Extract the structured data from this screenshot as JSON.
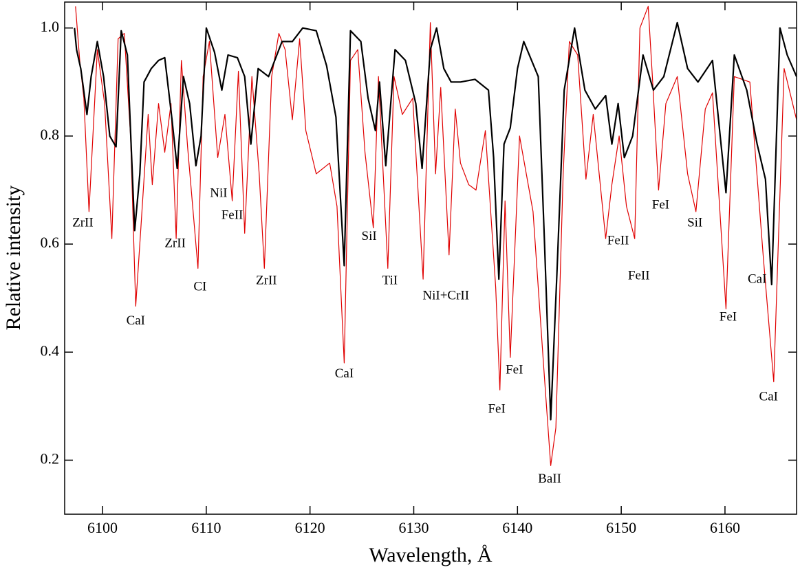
{
  "chart_data": {
    "type": "line",
    "xlabel": "Wavelength, Å",
    "ylabel": "Relative intensity",
    "xlim": [
      6096.35,
      6166.9
    ],
    "ylim": [
      0.1,
      1.048
    ],
    "xticks": [
      6100,
      6110,
      6120,
      6130,
      6140,
      6150,
      6160
    ],
    "yticks": [
      0.2,
      0.4,
      0.6,
      0.8,
      {
        "value": 1,
        "label": "1.0"
      }
    ],
    "grid": false,
    "series": [
      {
        "color": "#e00000",
        "x": [
          6097.4,
          6097.8,
          6098.2,
          6098.7,
          6099.5,
          6100.2,
          6100.9,
          6101.5,
          6102.1,
          6102.7,
          6103.2,
          6103.7,
          6104.4,
          6104.8,
          6105.4,
          6106.0,
          6106.6,
          6107.1,
          6107.6,
          6108.2,
          6109.2,
          6109.7,
          6110.3,
          6111.1,
          6111.8,
          6112.5,
          6113.1,
          6113.7,
          6114.4,
          6115.1,
          6115.6,
          6116.3,
          6117.0,
          6117.6,
          6118.3,
          6119.0,
          6119.6,
          6120.6,
          6121.9,
          6122.6,
          6123.3,
          6123.9,
          6124.6,
          6125.3,
          6126.1,
          6126.6,
          6127.5,
          6128.1,
          6128.9,
          6129.9,
          6130.9,
          6131.6,
          6132.1,
          6132.6,
          6133.4,
          6134.0,
          6134.5,
          6135.3,
          6136.0,
          6136.9,
          6137.9,
          6138.3,
          6138.8,
          6139.3,
          6140.2,
          6141.5,
          6142.5,
          6143.2,
          6143.7,
          6144.4,
          6145.0,
          6145.8,
          6146.6,
          6147.3,
          6148.5,
          6149.1,
          6149.8,
          6150.5,
          6151.3,
          6151.8,
          6152.6,
          6153.0,
          6153.6,
          6154.3,
          6155.4,
          6156.4,
          6157.2,
          6158.1,
          6158.8,
          6160.1,
          6160.9,
          6162.4,
          6163.7,
          6164.7,
          6165.7,
          6166.9
        ],
        "values": [
          1.04,
          0.94,
          0.87,
          0.66,
          0.96,
          0.86,
          0.61,
          0.98,
          0.99,
          0.8,
          0.485,
          0.63,
          0.84,
          0.71,
          0.86,
          0.77,
          0.86,
          0.61,
          0.94,
          0.78,
          0.555,
          0.91,
          0.975,
          0.76,
          0.84,
          0.68,
          0.92,
          0.62,
          0.91,
          0.73,
          0.555,
          0.91,
          0.99,
          0.96,
          0.83,
          0.98,
          0.81,
          0.73,
          0.75,
          0.67,
          0.38,
          0.94,
          0.96,
          0.77,
          0.63,
          0.91,
          0.555,
          0.91,
          0.84,
          0.87,
          0.535,
          1.01,
          0.73,
          0.89,
          0.58,
          0.85,
          0.75,
          0.71,
          0.7,
          0.81,
          0.52,
          0.33,
          0.68,
          0.39,
          0.8,
          0.66,
          0.38,
          0.19,
          0.26,
          0.73,
          0.975,
          0.95,
          0.72,
          0.84,
          0.61,
          0.71,
          0.8,
          0.67,
          0.61,
          1.0,
          1.04,
          0.91,
          0.7,
          0.86,
          0.91,
          0.73,
          0.66,
          0.85,
          0.88,
          0.48,
          0.91,
          0.9,
          0.575,
          0.345,
          0.925,
          0.83
        ]
      },
      {
        "color": "#000000",
        "x": [
          6097.3,
          6097.5,
          6097.9,
          6098.5,
          6098.9,
          6099.5,
          6100.1,
          6100.7,
          6101.3,
          6101.8,
          6102.4,
          6103.1,
          6103.6,
          6104.0,
          6104.7,
          6105.4,
          6106.0,
          6106.7,
          6107.2,
          6107.8,
          6108.4,
          6109.0,
          6109.5,
          6110.0,
          6110.8,
          6111.5,
          6112.1,
          6113.0,
          6113.7,
          6114.3,
          6115.0,
          6116.0,
          6117.3,
          6118.3,
          6119.3,
          6120.6,
          6121.6,
          6122.5,
          6123.3,
          6123.9,
          6124.9,
          6125.6,
          6126.3,
          6126.7,
          6127.3,
          6128.2,
          6129.2,
          6130.2,
          6130.8,
          6131.6,
          6132.2,
          6132.9,
          6133.6,
          6134.5,
          6135.9,
          6137.2,
          6137.7,
          6138.2,
          6138.7,
          6139.3,
          6140.0,
          6140.6,
          6142.0,
          6142.6,
          6143.2,
          6143.8,
          6144.5,
          6145.5,
          6146.5,
          6147.5,
          6148.5,
          6149.1,
          6149.7,
          6150.3,
          6151.1,
          6152.1,
          6153.1,
          6154.1,
          6155.4,
          6156.4,
          6157.4,
          6158.8,
          6160.1,
          6160.9,
          6162.1,
          6163.1,
          6163.9,
          6164.5,
          6165.3,
          6166.0,
          6166.9
        ],
        "values": [
          1.0,
          0.96,
          0.925,
          0.84,
          0.91,
          0.975,
          0.91,
          0.8,
          0.78,
          0.995,
          0.95,
          0.625,
          0.73,
          0.9,
          0.925,
          0.94,
          0.945,
          0.83,
          0.74,
          0.91,
          0.86,
          0.745,
          0.8,
          1.0,
          0.955,
          0.885,
          0.95,
          0.945,
          0.91,
          0.785,
          0.925,
          0.91,
          0.975,
          0.975,
          1.0,
          0.995,
          0.93,
          0.835,
          0.56,
          0.995,
          0.975,
          0.87,
          0.81,
          0.9,
          0.745,
          0.96,
          0.94,
          0.86,
          0.74,
          0.96,
          1.0,
          0.925,
          0.9,
          0.9,
          0.905,
          0.885,
          0.76,
          0.535,
          0.785,
          0.815,
          0.925,
          0.975,
          0.91,
          0.605,
          0.275,
          0.545,
          0.885,
          1.0,
          0.885,
          0.85,
          0.875,
          0.785,
          0.86,
          0.76,
          0.8,
          0.95,
          0.885,
          0.91,
          1.01,
          0.925,
          0.9,
          0.94,
          0.695,
          0.95,
          0.885,
          0.785,
          0.72,
          0.525,
          1.0,
          0.95,
          0.91
        ]
      }
    ],
    "annotations": [
      {
        "text": "ZrII",
        "x": 6098.1,
        "y": 0.638
      },
      {
        "text": "CaI",
        "x": 6103.2,
        "y": 0.457
      },
      {
        "text": "ZrII",
        "x": 6107.0,
        "y": 0.6
      },
      {
        "text": "CI",
        "x": 6109.4,
        "y": 0.52
      },
      {
        "text": "NiI",
        "x": 6111.2,
        "y": 0.693
      },
      {
        "text": "FeII",
        "x": 6112.5,
        "y": 0.652
      },
      {
        "text": "ZrII",
        "x": 6115.8,
        "y": 0.531
      },
      {
        "text": "CaI",
        "x": 6123.3,
        "y": 0.359
      },
      {
        "text": "SiI",
        "x": 6125.7,
        "y": 0.613
      },
      {
        "text": "TiI",
        "x": 6127.7,
        "y": 0.531
      },
      {
        "text": "NiI+CrII",
        "x": 6133.1,
        "y": 0.503
      },
      {
        "text": "FeI",
        "x": 6139.7,
        "y": 0.366
      },
      {
        "text": "FeI",
        "x": 6138.0,
        "y": 0.293
      },
      {
        "text": "BaII",
        "x": 6143.1,
        "y": 0.164
      },
      {
        "text": "FeII",
        "x": 6149.7,
        "y": 0.605
      },
      {
        "text": "FeII",
        "x": 6151.7,
        "y": 0.54
      },
      {
        "text": "FeI",
        "x": 6153.8,
        "y": 0.671
      },
      {
        "text": "SiI",
        "x": 6157.1,
        "y": 0.638
      },
      {
        "text": "CaI",
        "x": 6163.1,
        "y": 0.534
      },
      {
        "text": "FeI",
        "x": 6160.3,
        "y": 0.464
      },
      {
        "text": "CaI",
        "x": 6164.2,
        "y": 0.316
      }
    ]
  }
}
